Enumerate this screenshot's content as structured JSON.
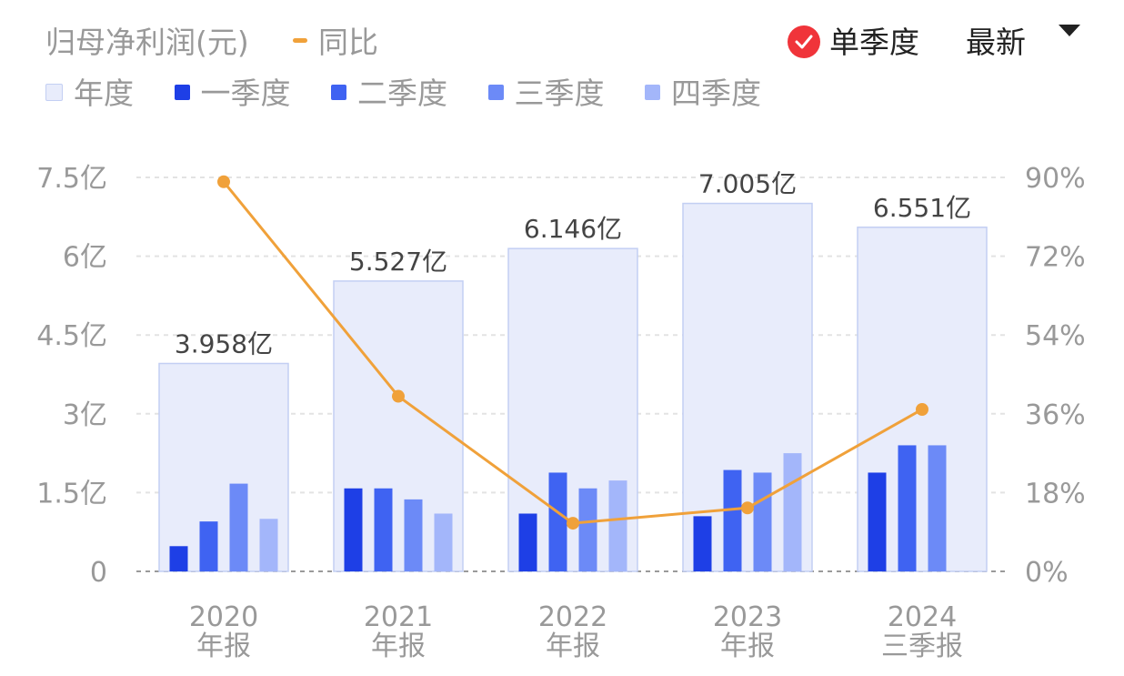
{
  "header": {
    "title": "归母净利润(元)",
    "yoy_label": "同比",
    "toggle_label": "单季度",
    "period_label": "最新"
  },
  "legend": [
    {
      "label": "年度",
      "color": "#E8ECFB"
    },
    {
      "label": "一季度",
      "color": "#1E3FE6"
    },
    {
      "label": "二季度",
      "color": "#3F63F2"
    },
    {
      "label": "三季度",
      "color": "#6C8AF7"
    },
    {
      "label": "四季度",
      "color": "#A3B6FA"
    }
  ],
  "chart_data": {
    "type": "bar",
    "categories": [
      "2020\n年报",
      "2021\n年报",
      "2022\n年报",
      "2023\n年报",
      "2024\n三季报"
    ],
    "annual": {
      "name": "年度",
      "values": [
        3.958,
        5.527,
        6.146,
        7.005,
        6.551
      ],
      "labels": [
        "3.958亿",
        "5.527亿",
        "6.146亿",
        "7.005亿",
        "6.551亿"
      ]
    },
    "quarters": [
      {
        "name": "一季度",
        "values": [
          0.48,
          1.58,
          1.1,
          1.05,
          1.88
        ]
      },
      {
        "name": "二季度",
        "values": [
          0.95,
          1.58,
          1.88,
          1.93,
          2.4
        ]
      },
      {
        "name": "三季度",
        "values": [
          1.67,
          1.37,
          1.58,
          1.88,
          2.4
        ]
      },
      {
        "name": "四季度",
        "values": [
          1.0,
          1.1,
          1.73,
          2.25,
          null
        ]
      }
    ],
    "yoy": {
      "name": "同比",
      "values": [
        89,
        40,
        11,
        14.5,
        37
      ]
    },
    "y_left": {
      "ticks": [
        "0",
        "1.5亿",
        "3亿",
        "4.5亿",
        "6亿",
        "7.5亿"
      ],
      "ylim": [
        0,
        7.5
      ]
    },
    "y_right": {
      "ticks": [
        "0%",
        "18%",
        "36%",
        "54%",
        "72%",
        "90%"
      ],
      "ylim": [
        0,
        90
      ]
    },
    "colors": {
      "annual_fill": "#E8ECFB",
      "annual_stroke": "#C3CFF3",
      "yoy": "#F0A13A",
      "grid": "#E3E3E3",
      "tick_text": "#999999"
    }
  }
}
